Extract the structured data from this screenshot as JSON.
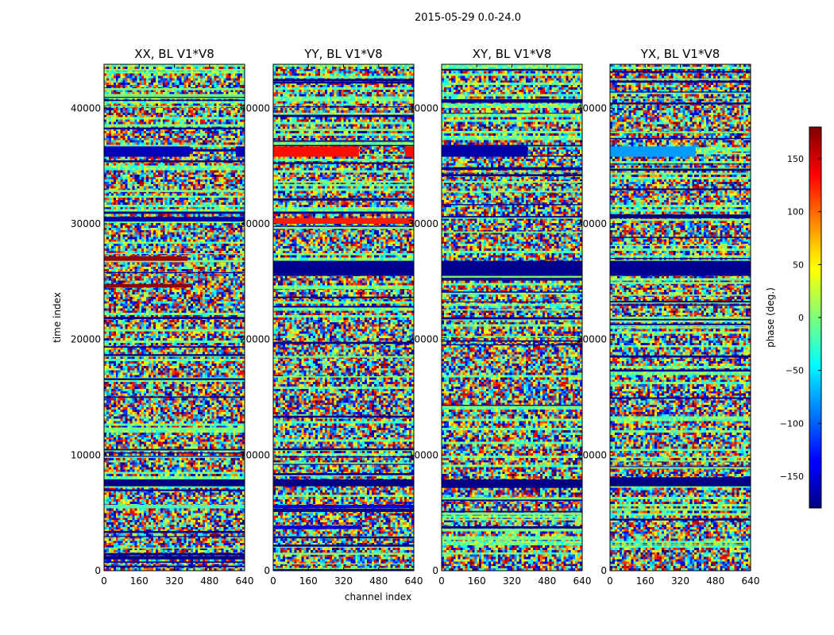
{
  "chart_data": {
    "type": "heatmap",
    "suptitle": "2015-05-29 0.0-24.0",
    "xlabel": "channel index",
    "ylabel": "time index",
    "xlim": [
      0,
      640
    ],
    "ylim": [
      0,
      43800
    ],
    "xticks": [
      0,
      160,
      320,
      480,
      640
    ],
    "yticks": [
      0,
      10000,
      20000,
      30000,
      40000
    ],
    "panels": [
      {
        "title": "XX, BL V1*V8",
        "bands": [
          {
            "t0": 35800,
            "t1": 36700,
            "c0": 0,
            "c1": 390,
            "phase": -160
          },
          {
            "t0": 35800,
            "t1": 36700,
            "c0": 600,
            "c1": 640,
            "phase": -160
          },
          {
            "t0": 30200,
            "t1": 30600,
            "c0": 0,
            "c1": 640,
            "phase": -165
          },
          {
            "t0": 26800,
            "t1": 27200,
            "c0": 0,
            "c1": 380,
            "phase": 170
          },
          {
            "t0": 24500,
            "t1": 24800,
            "c0": 0,
            "c1": 400,
            "phase": 175
          },
          {
            "t0": 7300,
            "t1": 7900,
            "c0": 0,
            "c1": 640,
            "phase": -178
          },
          {
            "t0": 5400,
            "t1": 5700,
            "c0": 0,
            "c1": 640,
            "phase": -20
          }
        ]
      },
      {
        "title": "YY, BL V1*V8",
        "bands": [
          {
            "t0": 35800,
            "t1": 36700,
            "c0": 0,
            "c1": 390,
            "phase": 130
          },
          {
            "t0": 35800,
            "t1": 36700,
            "c0": 600,
            "c1": 640,
            "phase": 130
          },
          {
            "t0": 30000,
            "t1": 30500,
            "c0": 0,
            "c1": 640,
            "phase": 125
          },
          {
            "t0": 25500,
            "t1": 26800,
            "c0": 0,
            "c1": 640,
            "phase": -175
          },
          {
            "t0": 7300,
            "t1": 7900,
            "c0": 0,
            "c1": 640,
            "phase": -178
          },
          {
            "t0": 5400,
            "t1": 5700,
            "c0": 0,
            "c1": 640,
            "phase": -140
          },
          {
            "t0": 3600,
            "t1": 3900,
            "c0": 0,
            "c1": 400,
            "phase": -150
          }
        ]
      },
      {
        "title": "XY, BL V1*V8",
        "bands": [
          {
            "t0": 35800,
            "t1": 36700,
            "c0": 0,
            "c1": 390,
            "phase": -165
          },
          {
            "t0": 25500,
            "t1": 26800,
            "c0": 0,
            "c1": 640,
            "phase": -175
          },
          {
            "t0": 7300,
            "t1": 7900,
            "c0": 0,
            "c1": 640,
            "phase": -178
          }
        ]
      },
      {
        "title": "YX, BL V1*V8",
        "bands": [
          {
            "t0": 35800,
            "t1": 36700,
            "c0": 0,
            "c1": 390,
            "phase": -80
          },
          {
            "t0": 25500,
            "t1": 26800,
            "c0": 0,
            "c1": 640,
            "phase": -175
          },
          {
            "t0": 7300,
            "t1": 7900,
            "c0": 0,
            "c1": 640,
            "phase": -178
          }
        ]
      }
    ],
    "colorbar": {
      "label": "phase (deg.)",
      "range": [
        -180,
        180
      ],
      "ticks": [
        150,
        100,
        50,
        0,
        -50,
        -100,
        -150
      ],
      "tick_labels": [
        "150",
        "100",
        "50",
        "0",
        "−50",
        "−100",
        "−150"
      ],
      "colormap": "jet"
    },
    "ticks_text": {
      "x": [
        "0",
        "160",
        "320",
        "480",
        "640"
      ],
      "y": [
        "0",
        "10000",
        "20000",
        "30000",
        "40000"
      ]
    }
  }
}
